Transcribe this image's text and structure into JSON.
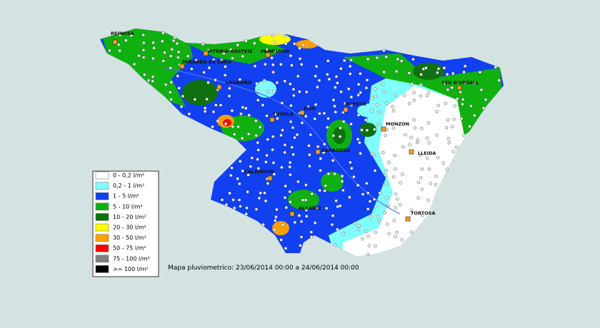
{
  "legend": {
    "items": [
      {
        "label": "0 - 0,2 l/m²",
        "color": "#ffffff"
      },
      {
        "label": "0,2 - 1 l/m²",
        "color": "#80ffff"
      },
      {
        "label": "1 - 5 l/m²",
        "color": "#1040f0"
      },
      {
        "label": "5 - 10 l/m²",
        "color": "#10b010"
      },
      {
        "label": "10 - 20 l/m²",
        "color": "#107010"
      },
      {
        "label": "20 - 30 l/m²",
        "color": "#ffff00"
      },
      {
        "label": "30 - 50 l/m²",
        "color": "#ffa000"
      },
      {
        "label": "50 - 75 l/m²",
        "color": "#ff0000"
      },
      {
        "label": "75 - 100 l/m²",
        "color": "#808080"
      },
      {
        "label": ">= 100 l/m²",
        "color": "#000000"
      }
    ]
  },
  "caption": "Mapa pluviometrico: 23/06/2014 00:00 a 24/06/2014 00:00",
  "cities": [
    {
      "name": "REINOSA"
    },
    {
      "name": "VITORIA-GASTEIZ"
    },
    {
      "name": "PAMPLONA"
    },
    {
      "name": "MIRANDA DE EBRO"
    },
    {
      "name": "LOGROÑO"
    },
    {
      "name": "TUDELA"
    },
    {
      "name": "EJEA"
    },
    {
      "name": "HUESCA"
    },
    {
      "name": "SEU D'URGELL"
    },
    {
      "name": "MONZON"
    },
    {
      "name": "ZARAGOZA"
    },
    {
      "name": "LLEIDA"
    },
    {
      "name": "CALATAYUD"
    },
    {
      "name": "ALCAÑIZ"
    },
    {
      "name": "TORTOSA"
    }
  ]
}
